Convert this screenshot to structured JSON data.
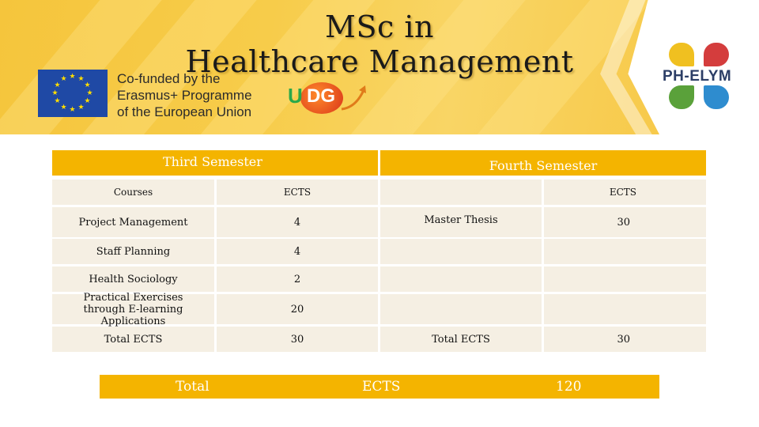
{
  "header": {
    "title_line1": "MSc in",
    "title_line2": "Healthcare Management",
    "eu_line1": "Co-funded by the",
    "eu_line2": "Erasmus+ Programme",
    "eu_line3": "of the European Union",
    "udg_u": "U",
    "udg_dg": "DG",
    "logo_text": "PH-ELYM"
  },
  "colors": {
    "banner": "#f6c43e",
    "table_header": "#f4b400",
    "table_cell": "#f5efe3",
    "eu_blue": "#1f49a5"
  },
  "third": {
    "heading": "Third Semester",
    "col_courses": "Courses",
    "col_ects": "ECTS",
    "rows": [
      {
        "course": "Project Management",
        "ects": "4"
      },
      {
        "course": "Staff Planning",
        "ects": "4"
      },
      {
        "course": "Health Sociology",
        "ects": "2"
      },
      {
        "course": "Practical Exercises through E-learning Applications",
        "ects": "20"
      }
    ],
    "total_label": "Total ECTS",
    "total_value": "30"
  },
  "fourth": {
    "heading": "Fourth Semester",
    "col_ects": "ECTS",
    "course": "Master Thesis",
    "ects": "30",
    "total_label": "Total ECTS",
    "total_value": "30"
  },
  "grand_total": {
    "label": "Total",
    "unit": "ECTS",
    "value": "120"
  }
}
